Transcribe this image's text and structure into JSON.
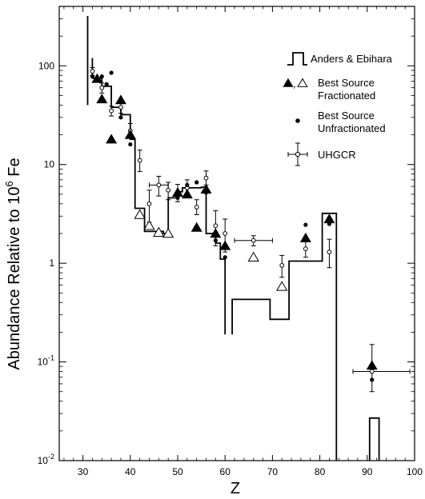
{
  "chart_data": {
    "type": "scatter",
    "title": "",
    "xlabel": "Z",
    "ylabel": "Abundance Relative to 10",
    "ylabel_sup": "6",
    "ylabel_tail": " Fe",
    "x_range": [
      25,
      100
    ],
    "y_range": [
      0.01,
      400
    ],
    "y_scale": "log",
    "grid": false,
    "legend_position": "top-right",
    "x_ticks": [
      30,
      40,
      50,
      60,
      70,
      80,
      90,
      100
    ],
    "y_ticks": [
      {
        "value": 100,
        "label": "100"
      },
      {
        "value": 10,
        "label": "10"
      },
      {
        "value": 1,
        "label": "1"
      },
      {
        "value": 0.1,
        "label": "10",
        "sup": "-1"
      },
      {
        "value": 0.01,
        "label": "10",
        "sup": "-2"
      }
    ],
    "legend": [
      {
        "key": "step",
        "label": "Anders & Ebihara"
      },
      {
        "key": "frac",
        "label": "Best Source",
        "label2": "Fractionated",
        "prefix": "▲,△"
      },
      {
        "key": "unfrac",
        "label": "Best Source",
        "label2": "Unfractionated"
      },
      {
        "key": "uhgcr",
        "label": "UHGCR"
      }
    ],
    "series": [
      {
        "name": "Anders & Ebihara",
        "kind": "step",
        "segments": [
          [
            [
              31,
              40
            ],
            [
              31,
              320
            ]
          ],
          [
            [
              32,
              120
            ],
            [
              32,
              75
            ],
            [
              34,
              75
            ],
            [
              34,
              62
            ],
            [
              36,
              62
            ],
            [
              36,
              38
            ],
            [
              38,
              38
            ],
            [
              38,
              32
            ],
            [
              40,
              32
            ],
            [
              40,
              18
            ],
            [
              41,
              18
            ],
            [
              41,
              3.6
            ],
            [
              43,
              3.6
            ],
            [
              43,
              2.1
            ],
            [
              47,
              2.1
            ],
            [
              47,
              2.0
            ],
            [
              48,
              2.0
            ],
            [
              48,
              4.6
            ],
            [
              50,
              4.6
            ],
            [
              50,
              5.3
            ],
            [
              51,
              5.3
            ],
            [
              51,
              5.8
            ],
            [
              55,
              5.8
            ],
            [
              55,
              5.9
            ],
            [
              56,
              5.9
            ],
            [
              56,
              2.0
            ],
            [
              58,
              2.0
            ],
            [
              58,
              1.6
            ],
            [
              59,
              1.6
            ],
            [
              59,
              1.1
            ],
            [
              60,
              1.1
            ],
            [
              60,
              0.19
            ]
          ],
          [
            [
              61.5,
              0.19
            ],
            [
              61.5,
              0.43
            ],
            [
              69.5,
              0.43
            ],
            [
              69.5,
              0.27
            ],
            [
              73.5,
              0.27
            ],
            [
              73.5,
              1.05
            ],
            [
              80.5,
              1.05
            ],
            [
              80.5,
              3.2
            ],
            [
              83.5,
              3.2
            ],
            [
              83.5,
              0.008
            ]
          ],
          [
            [
              90.5,
              0.008
            ],
            [
              90.5,
              0.027
            ],
            [
              92.5,
              0.027
            ],
            [
              92.5,
              0.008
            ]
          ]
        ]
      },
      {
        "name": "Best Source Fractionated",
        "kind": "triangles",
        "filled": [
          [
            33,
            74
          ],
          [
            34,
            46
          ],
          [
            36,
            18
          ],
          [
            38,
            45
          ],
          [
            40,
            20
          ],
          [
            50,
            5.2
          ],
          [
            52,
            5.0
          ],
          [
            54,
            2.3
          ],
          [
            56,
            5.6
          ],
          [
            58,
            2.0
          ],
          [
            60,
            1.5
          ],
          [
            77,
            1.8
          ],
          [
            82,
            2.8
          ],
          [
            91,
            0.092
          ]
        ],
        "open": [
          [
            42,
            3.1
          ],
          [
            44,
            2.4
          ],
          [
            46,
            2.05
          ],
          [
            48,
            2.0
          ],
          [
            66,
            1.15
          ],
          [
            72,
            0.58
          ]
        ]
      },
      {
        "name": "Best Source Unfractionated",
        "kind": "dots",
        "points": [
          [
            32,
            78
          ],
          [
            33,
            75
          ],
          [
            34,
            78
          ],
          [
            35,
            65
          ],
          [
            36,
            85
          ],
          [
            38,
            30
          ],
          [
            40,
            16
          ],
          [
            50,
            4.6
          ],
          [
            52,
            6.2
          ],
          [
            54,
            6.6
          ],
          [
            56,
            5.2
          ],
          [
            58,
            1.7
          ],
          [
            60,
            1.15
          ],
          [
            77,
            2.45
          ],
          [
            82,
            2.5
          ],
          [
            91,
            0.066
          ]
        ]
      },
      {
        "name": "UHGCR",
        "kind": "errorbars",
        "points": [
          {
            "x": 32,
            "y": 88,
            "ylo": 80,
            "yhi": 96
          },
          {
            "x": 34,
            "y": 60,
            "ylo": 53,
            "yhi": 67
          },
          {
            "x": 36,
            "y": 35,
            "ylo": 31,
            "yhi": 39
          },
          {
            "x": 38,
            "y": 38,
            "ylo": 33,
            "yhi": 43
          },
          {
            "x": 40,
            "y": 22,
            "ylo": 19,
            "yhi": 26
          },
          {
            "x": 42,
            "y": 11,
            "ylo": 8.5,
            "yhi": 14
          },
          {
            "x": 44,
            "y": 4.0,
            "ylo": 2.6,
            "yhi": 5.5
          },
          {
            "x": 46,
            "y": 6.2,
            "ylo": 4.8,
            "yhi": 7.6,
            "xlo": 44,
            "xhi": 48
          },
          {
            "x": 48,
            "y": 5.5,
            "ylo": 4.4,
            "yhi": 6.6
          },
          {
            "x": 50,
            "y": 5.3,
            "ylo": 4.2,
            "yhi": 6.3
          },
          {
            "x": 52,
            "y": 5.8,
            "ylo": 4.7,
            "yhi": 7.0
          },
          {
            "x": 54,
            "y": 3.7,
            "ylo": 3.1,
            "yhi": 4.4
          },
          {
            "x": 56,
            "y": 7.3,
            "ylo": 6.2,
            "yhi": 8.6
          },
          {
            "x": 58,
            "y": 2.4,
            "ylo": 1.5,
            "yhi": 3.4
          },
          {
            "x": 60,
            "y": 2.0,
            "ylo": 1.3,
            "yhi": 2.8
          },
          {
            "x": 66,
            "y": 1.7,
            "ylo": 1.5,
            "yhi": 1.9,
            "xlo": 62,
            "xhi": 70
          },
          {
            "x": 72,
            "y": 0.95,
            "ylo": 0.72,
            "yhi": 1.2
          },
          {
            "x": 77,
            "y": 1.4,
            "ylo": 1.15,
            "yhi": 1.65
          },
          {
            "x": 82,
            "y": 1.3,
            "ylo": 0.9,
            "yhi": 1.75
          },
          {
            "x": 91,
            "y": 0.08,
            "ylo": 0.05,
            "yhi": 0.15,
            "xlo": 87,
            "xhi": 99
          }
        ]
      }
    ]
  }
}
